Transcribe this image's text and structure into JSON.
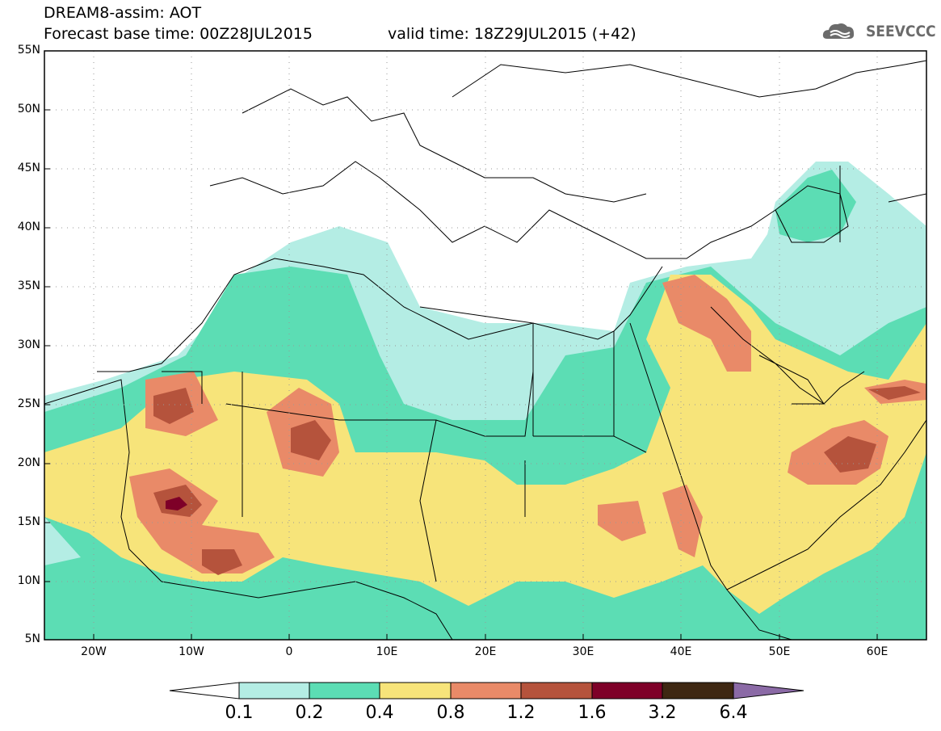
{
  "header": {
    "title_line1": "DREAM8-assim: AOT",
    "title_line2": "Forecast base time: 00Z28JUL2015",
    "valid_time": "valid time: 18Z29JUL2015 (+42)",
    "logo_text": "SEEVCCC",
    "logo_icon": "cloud-icon"
  },
  "map": {
    "lat_labels": [
      "55N",
      "50N",
      "45N",
      "40N",
      "35N",
      "30N",
      "25N",
      "20N",
      "15N",
      "10N",
      "5N"
    ],
    "lon_labels": [
      "20W",
      "10W",
      "0",
      "10E",
      "20E",
      "30E",
      "40E",
      "50E",
      "60E"
    ],
    "lat_range": [
      5,
      55
    ],
    "lon_range": [
      -25,
      65
    ],
    "gridlines": "dotted",
    "basemap": "country-boundaries",
    "field": "aerosol optical thickness (AOT)"
  },
  "colorbar": {
    "labels": [
      "0.1",
      "0.2",
      "0.4",
      "0.8",
      "1.2",
      "1.6",
      "3.2",
      "6.4"
    ],
    "colors": [
      "#ffffff",
      "#b4ede4",
      "#5cddb4",
      "#f7e47a",
      "#e98a68",
      "#b5533c",
      "#7e0028",
      "#3e2712",
      "#8b6aa6"
    ]
  },
  "legend_colors": {
    "c01": "#b4ede4",
    "c02": "#5cddb4",
    "c04": "#f7e47a",
    "c08": "#e98a68",
    "c12": "#b5533c",
    "c16": "#7e0028",
    "c32": "#3e2712"
  }
}
